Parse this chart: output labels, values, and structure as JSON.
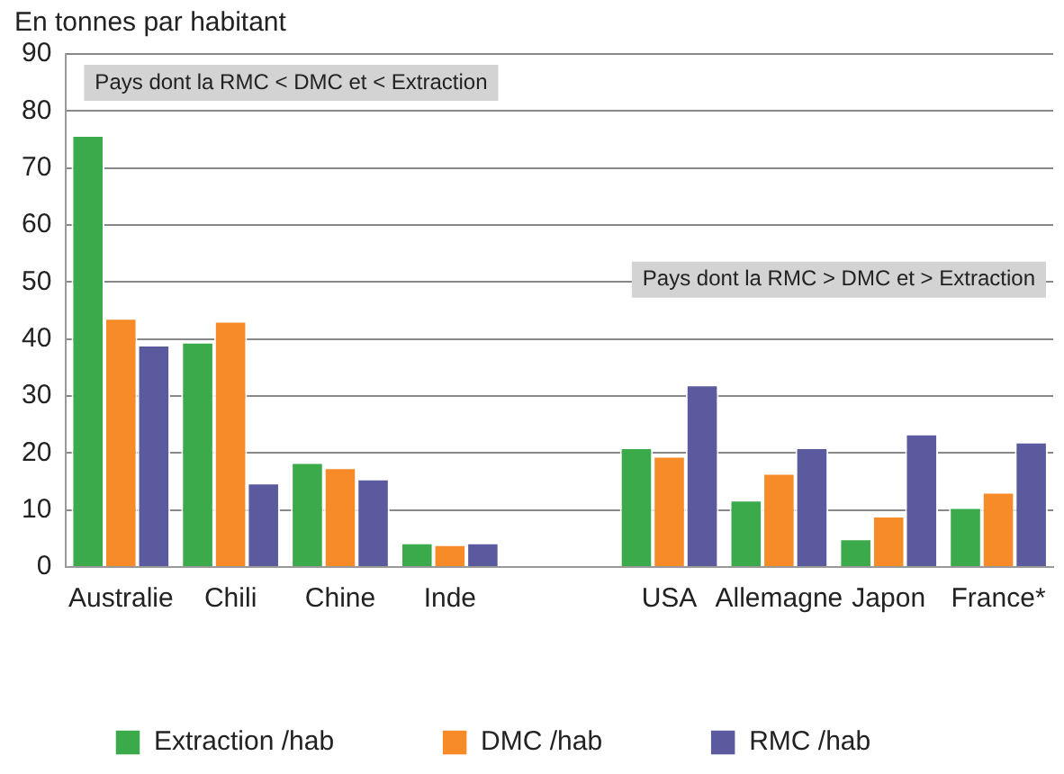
{
  "chart_data": {
    "type": "bar",
    "ylabel": "En tonnes par habitant",
    "categories": [
      "Australie",
      "Chili",
      "Chine",
      "Inde",
      null,
      "USA",
      "Allemagne",
      "Japon",
      "France*"
    ],
    "series": [
      {
        "name": "Extraction /hab",
        "color": "#3aaa4a",
        "values": [
          75.8,
          39.5,
          18.4,
          4.3,
          null,
          21,
          11.8,
          5,
          10.5
        ]
      },
      {
        "name": "DMC /hab",
        "color": "#f68b28",
        "values": [
          43.7,
          43.2,
          17.5,
          4,
          null,
          19.5,
          16.5,
          9,
          13.2
        ]
      },
      {
        "name": "RMC /hab",
        "color": "#5b5a9e",
        "values": [
          39,
          14.8,
          15.5,
          4.3,
          null,
          32,
          21,
          23.4,
          22
        ]
      }
    ],
    "ylim": [
      0,
      90
    ],
    "yticks": [
      0,
      10,
      20,
      30,
      40,
      50,
      60,
      70,
      80,
      90
    ],
    "grid": "y",
    "legend": "bottom",
    "annotations": [
      "Pays dont la RMC < DMC et < Extraction",
      "Pays dont la RMC > DMC et > Extraction"
    ]
  }
}
